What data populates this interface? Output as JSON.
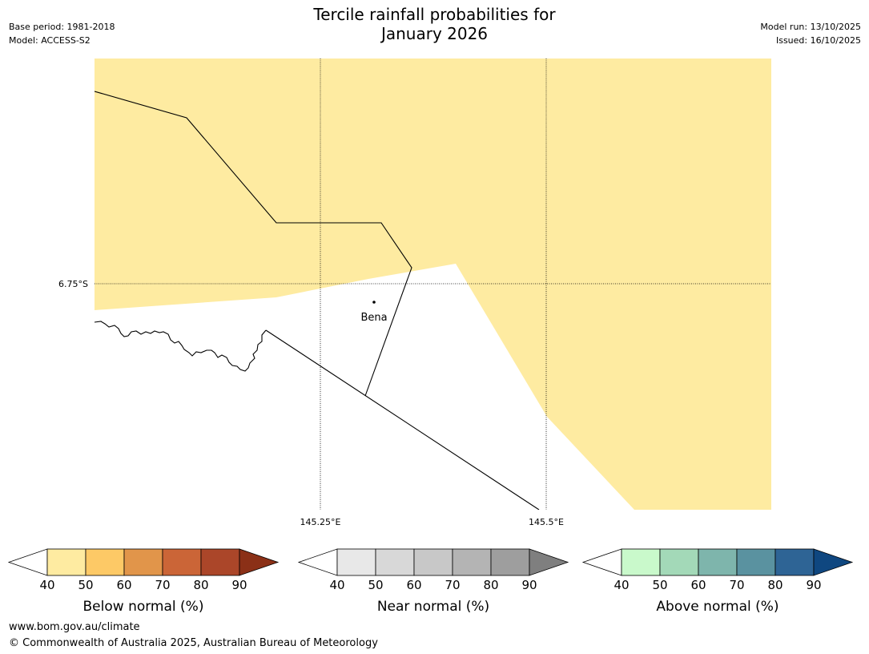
{
  "header": {
    "title_line1": "Tercile rainfall probabilities for",
    "title_line2": "January 2026",
    "base_period": "Base period: 1981-2018",
    "model": "Model: ACCESS-S2",
    "model_run": "Model run: 13/10/2025",
    "issued": "Issued: 16/10/2025"
  },
  "map": {
    "place_label": "Bena",
    "lat_label": "6.75°S",
    "lon_labels": [
      "145.25°E",
      "145.5°E"
    ],
    "fill_color": "#feeba1",
    "category_shown": "Below normal 40–50%"
  },
  "colorbars": [
    {
      "label": "Below normal (%)",
      "ticks": [
        "40",
        "50",
        "60",
        "70",
        "80",
        "90"
      ],
      "colors": [
        "#ffffff",
        "#feeba1",
        "#fdc966",
        "#e1954a",
        "#cb6537",
        "#ab4629",
        "#8b3017"
      ]
    },
    {
      "label": "Near normal (%)",
      "ticks": [
        "40",
        "50",
        "60",
        "70",
        "80",
        "90"
      ],
      "colors": [
        "#ffffff",
        "#e8e8e8",
        "#d8d8d8",
        "#c8c8c8",
        "#b4b4b4",
        "#9e9e9e",
        "#7f7f7f"
      ]
    },
    {
      "label": "Above normal (%)",
      "ticks": [
        "40",
        "50",
        "60",
        "70",
        "80",
        "90"
      ],
      "colors": [
        "#ffffff",
        "#c9f9cb",
        "#a3d9b8",
        "#7eb5ac",
        "#5a92a0",
        "#2e6495",
        "#0f4780"
      ]
    }
  ],
  "footer": {
    "url": "www.bom.gov.au/climate",
    "copyright": "© Commonwealth of Australia 2025, Australian Bureau of Meteorology"
  }
}
